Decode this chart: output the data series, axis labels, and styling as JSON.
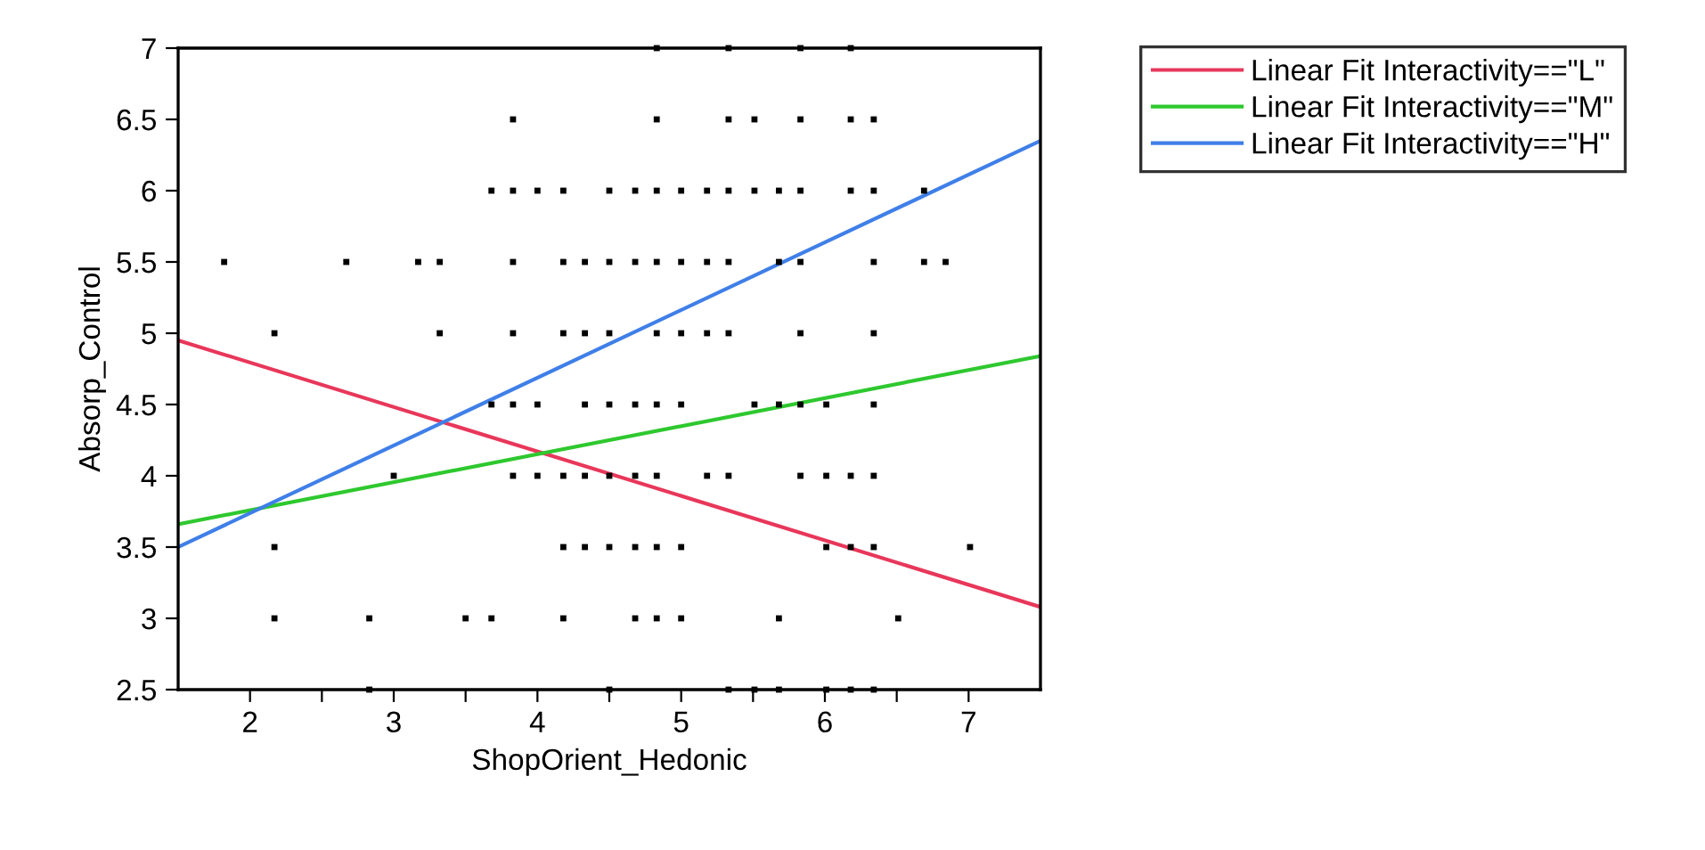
{
  "chart_data": {
    "type": "scatter",
    "xlabel": "ShopOrient_Hedonic",
    "ylabel": "Absorp_Control",
    "xlim": [
      1.5,
      7.5
    ],
    "ylim": [
      2.5,
      7
    ],
    "xticks": [
      2,
      {
        "value": 2.5,
        "label": null
      },
      3,
      {
        "value": 3.5,
        "label": null
      },
      4,
      {
        "value": 4.5,
        "label": null
      },
      5,
      {
        "value": 5.5,
        "label": null
      },
      6,
      {
        "value": 6.5,
        "label": null
      },
      7
    ],
    "yticks": [
      2.5,
      3,
      3.5,
      4,
      4.5,
      5,
      5.5,
      6,
      6.5,
      7
    ],
    "grid": false,
    "legend": "top right",
    "series": [
      {
        "marker": "square",
        "color": "#000000",
        "x": [
          4.83,
          5.33,
          5.83,
          6.18,
          3.83,
          4.83,
          5.33,
          5.51,
          5.83,
          6.18,
          6.34,
          3.68,
          3.83,
          4.0,
          4.18,
          4.5,
          4.68,
          4.83,
          5.0,
          5.18,
          5.33,
          5.51,
          5.68,
          5.83,
          6.18,
          6.34,
          6.69,
          1.82,
          2.67,
          3.17,
          3.32,
          3.83,
          4.18,
          4.33,
          4.5,
          4.68,
          4.83,
          5.0,
          5.18,
          5.33,
          5.68,
          5.83,
          6.34,
          6.69,
          6.84,
          2.17,
          3.32,
          3.83,
          4.18,
          4.33,
          4.5,
          4.83,
          5.0,
          5.18,
          5.33,
          5.83,
          6.34,
          3.68,
          3.83,
          4.0,
          4.33,
          4.5,
          4.68,
          4.83,
          5.0,
          5.51,
          5.68,
          5.83,
          6.01,
          6.34,
          3.0,
          3.83,
          4.0,
          4.18,
          4.33,
          4.5,
          4.68,
          4.83,
          5.18,
          5.33,
          5.83,
          6.01,
          6.18,
          6.34,
          2.17,
          4.18,
          4.33,
          4.5,
          4.68,
          4.83,
          5.0,
          6.01,
          6.18,
          6.34,
          7.01,
          2.17,
          2.83,
          3.5,
          3.68,
          4.18,
          4.68,
          4.83,
          5.0,
          5.68,
          6.51,
          2.83,
          4.5,
          5.33,
          5.51,
          5.68,
          6.01,
          6.18,
          6.34
        ],
        "values": [
          7,
          7,
          7,
          7,
          6.5,
          6.5,
          6.5,
          6.5,
          6.5,
          6.5,
          6.5,
          6,
          6,
          6,
          6,
          6,
          6,
          6,
          6,
          6,
          6,
          6,
          6,
          6,
          6,
          6,
          6,
          5.5,
          5.5,
          5.5,
          5.5,
          5.5,
          5.5,
          5.5,
          5.5,
          5.5,
          5.5,
          5.5,
          5.5,
          5.5,
          5.5,
          5.5,
          5.5,
          5.5,
          5.5,
          5,
          5,
          5,
          5,
          5,
          5,
          5,
          5,
          5,
          5,
          5,
          5,
          4.5,
          4.5,
          4.5,
          4.5,
          4.5,
          4.5,
          4.5,
          4.5,
          4.5,
          4.5,
          4.5,
          4.5,
          4.5,
          4,
          4,
          4,
          4,
          4,
          4,
          4,
          4,
          4,
          4,
          4,
          4,
          4,
          4,
          3.5,
          3.5,
          3.5,
          3.5,
          3.5,
          3.5,
          3.5,
          3.5,
          3.5,
          3.5,
          3.5,
          3,
          3,
          3,
          3,
          3,
          3,
          3,
          3,
          3,
          3,
          2.5,
          2.5,
          2.5,
          2.5,
          2.5,
          2.5,
          2.5,
          2.5
        ]
      },
      {
        "type": "line",
        "name": "Linear Fit Interactivity==\"L\"",
        "color": "#e8375a",
        "x": [
          1.5,
          7.5
        ],
        "values": [
          4.95,
          3.08
        ]
      },
      {
        "type": "line",
        "name": "Linear Fit Interactivity==\"M\"",
        "color": "#2ec82e",
        "x": [
          1.5,
          7.5
        ],
        "values": [
          3.66,
          4.84
        ]
      },
      {
        "type": "line",
        "name": "Linear Fit Interactivity==\"H\"",
        "color": "#3f7fe8",
        "x": [
          1.5,
          7.5
        ],
        "values": [
          3.5,
          6.35
        ]
      }
    ]
  }
}
